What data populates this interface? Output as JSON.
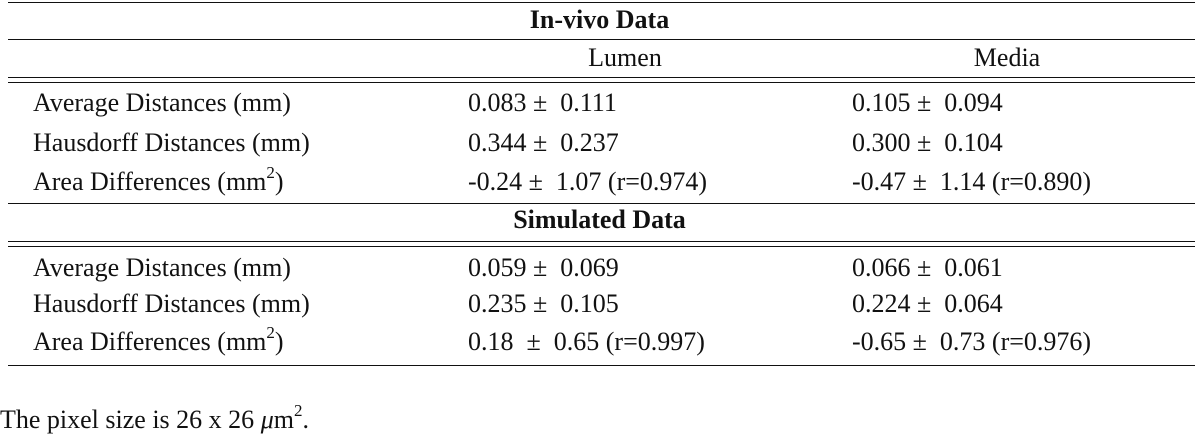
{
  "invivo": {
    "title": "In-vivo Data",
    "columns": [
      "Lumen",
      "Media"
    ],
    "rows": [
      {
        "label": "Average Distances (mm)",
        "lumen": "0.083 ±  0.111",
        "media": "0.105 ±  0.094"
      },
      {
        "label": "Hausdorff Distances (mm)",
        "lumen": "0.344 ±  0.237",
        "media": "0.300 ±  0.104"
      },
      {
        "label": {
          "text": "Area Differences (mm",
          "sup": "2",
          "after": ")"
        },
        "lumen": "-0.24 ±  1.07 (r=0.974)",
        "media": "-0.47 ±  1.14 (r=0.890)"
      }
    ]
  },
  "simulated": {
    "title": "Simulated Data",
    "rows": [
      {
        "label": "Average Distances (mm)",
        "lumen": "0.059 ±  0.069",
        "media": "0.066 ±  0.061"
      },
      {
        "label": "Hausdorff Distances (mm)",
        "lumen": "0.235 ±  0.105",
        "media": "0.224 ±  0.064"
      },
      {
        "label": {
          "text": "Area Differences (mm",
          "sup": "2",
          "after": ")"
        },
        "lumen": "0.18  ±  0.65 (r=0.997)",
        "media": "-0.65 ±  0.73 (r=0.976)"
      }
    ]
  },
  "footnote": {
    "text": "The pixel size is 26 x 26 ",
    "mu": "μ",
    "unit": "m",
    "sup": "2",
    "after": "."
  }
}
